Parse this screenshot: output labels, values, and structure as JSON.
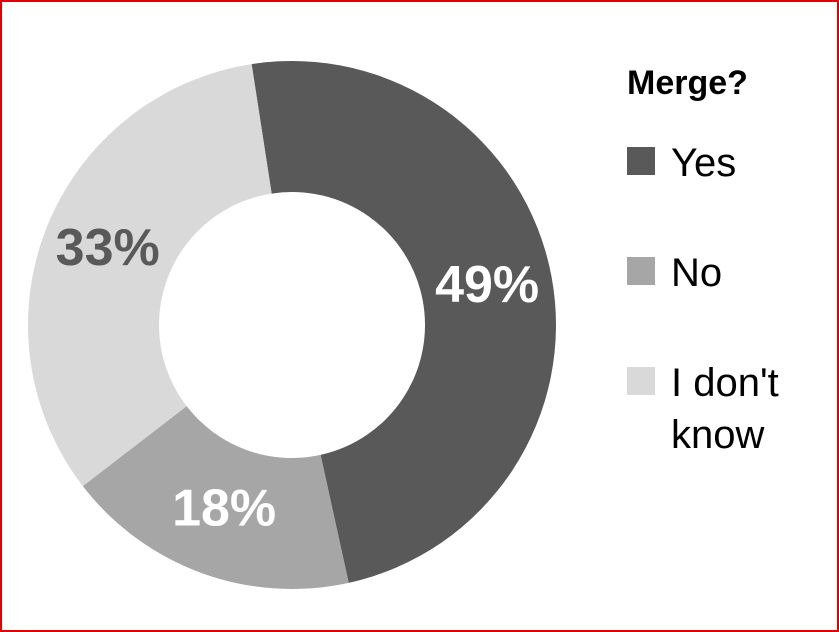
{
  "chart_data": {
    "type": "donut",
    "legend_title": "Merge?",
    "categories": [
      "Yes",
      "No",
      "I don't know"
    ],
    "values": [
      49,
      18,
      33
    ],
    "value_labels": [
      "49%",
      "18%",
      "33%"
    ],
    "colors": [
      "#595959",
      "#a6a6a6",
      "#d9d9d9"
    ],
    "label_colors": [
      "#ffffff",
      "#ffffff",
      "#595959"
    ],
    "legend": "right"
  }
}
